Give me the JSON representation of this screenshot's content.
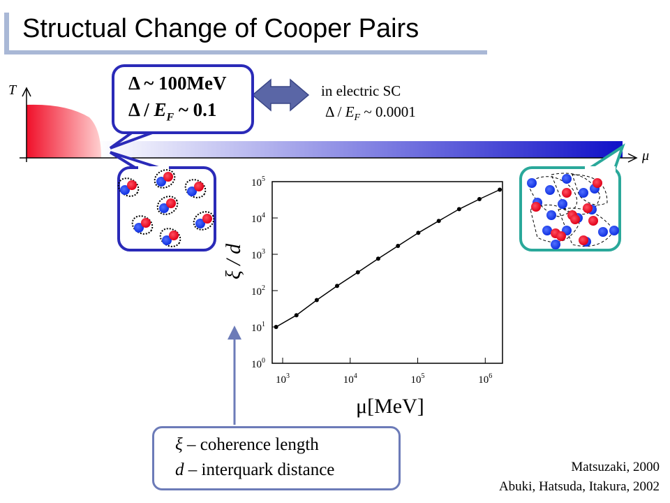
{
  "title": "Structual Change of Cooper Pairs",
  "phase": {
    "t_label": "T",
    "mu_label": "μ"
  },
  "bubble_top": {
    "line1": "Δ ~ 100MeV",
    "line2_delta": "Δ / ",
    "line2_E": "E",
    "line2_F": "F",
    "line2_rest": " ~ 0.1"
  },
  "electric_sc": {
    "line1": "in electric SC",
    "line2_delta": "Δ / ",
    "line2_E": "E",
    "line2_F": "F",
    "line2_rest": " ~ 0.0001"
  },
  "bottom_box": {
    "line1_sym": "ξ",
    "line1_rest": " – coherence length",
    "line2_sym": "d",
    "line2_rest": " – interquark distance"
  },
  "refs": {
    "line1": "Matsuzaki, 2000",
    "line2": "Abuki, Hatsuda, Itakura, 2002"
  },
  "chart_data": {
    "type": "line",
    "x_scale": "log",
    "y_scale": "log",
    "xlabel": "μ[MeV]",
    "ylabel": "ξ / d",
    "x_ticks": [
      "10^3",
      "10^4",
      "10^5",
      "10^6"
    ],
    "y_ticks": [
      "10^0",
      "10^1",
      "10^2",
      "10^3",
      "10^4",
      "10^5"
    ],
    "xlim": [
      700,
      1800000
    ],
    "ylim": [
      1,
      100000
    ],
    "series": [
      {
        "x": [
          800,
          1600,
          3200,
          6400,
          13000,
          26000,
          51000,
          102000,
          205000,
          410000,
          820000,
          1640000
        ],
        "y": [
          10,
          21,
          55,
          135,
          320,
          760,
          1700,
          3900,
          8300,
          17500,
          33000,
          60000
        ]
      }
    ],
    "grid": false
  },
  "colors": {
    "title_rule": "#a9b8d6",
    "bubble_border": "#2a2ab8",
    "red_quark": "#f0102a",
    "blue_quark": "#1c3ef0",
    "teal_border": "#2aa89a",
    "arrow_fill": "#5a66a6"
  }
}
